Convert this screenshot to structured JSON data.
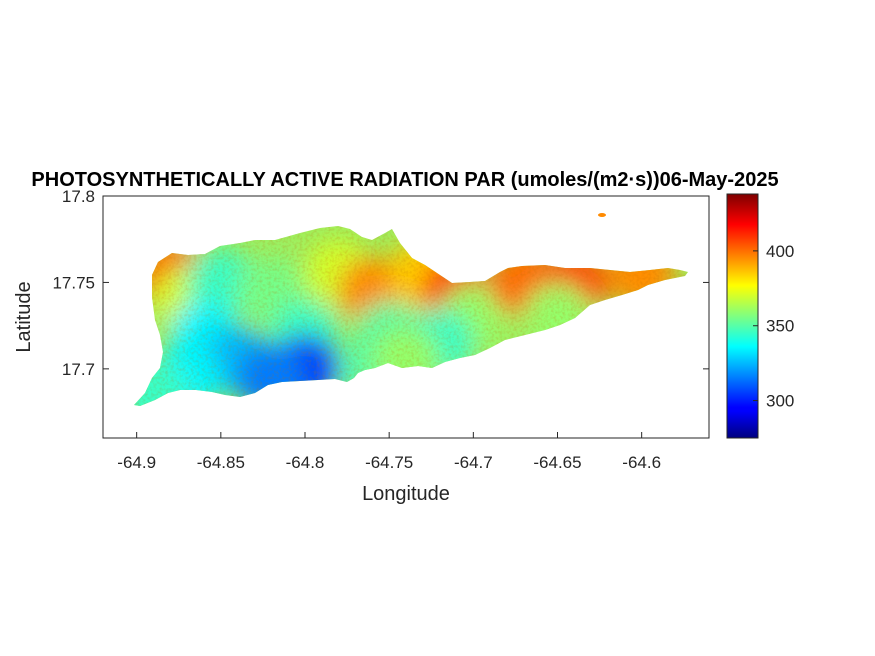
{
  "chart_data": {
    "type": "heatmap",
    "title": "PHOTOSYNTHETICALLY ACTIVE RADIATION PAR (umoles/(m2·s))06-May-2025",
    "xlabel": "Longitude",
    "ylabel": "Latitude",
    "xlim": [
      -64.92,
      -64.56
    ],
    "ylim": [
      17.66,
      17.8
    ],
    "x_ticks": [
      -64.9,
      -64.85,
      -64.8,
      -64.75,
      -64.7,
      -64.65,
      -64.6
    ],
    "x_tick_labels": [
      "-64.9",
      "-64.85",
      "-64.8",
      "-64.75",
      "-64.7",
      "-64.65",
      "-64.6"
    ],
    "y_ticks": [
      17.7,
      17.75,
      17.8
    ],
    "y_tick_labels": [
      "17.7",
      "17.75",
      "17.8"
    ],
    "colorbar": {
      "colormap": "jet",
      "clim": [
        275,
        438
      ],
      "ticks": [
        300,
        350,
        400
      ],
      "tick_labels": [
        "300",
        "350",
        "400"
      ]
    },
    "grid": false,
    "regions": [
      {
        "lon": -64.88,
        "lat": 17.755,
        "value": 400
      },
      {
        "lon": -64.87,
        "lat": 17.74,
        "value": 370
      },
      {
        "lon": -64.85,
        "lat": 17.75,
        "value": 345
      },
      {
        "lon": -64.82,
        "lat": 17.745,
        "value": 355
      },
      {
        "lon": -64.78,
        "lat": 17.755,
        "value": 370
      },
      {
        "lon": -64.76,
        "lat": 17.745,
        "value": 395
      },
      {
        "lon": -64.73,
        "lat": 17.755,
        "value": 385
      },
      {
        "lon": -64.71,
        "lat": 17.745,
        "value": 410
      },
      {
        "lon": -64.7,
        "lat": 17.73,
        "value": 360
      },
      {
        "lon": -64.67,
        "lat": 17.75,
        "value": 400
      },
      {
        "lon": -64.64,
        "lat": 17.75,
        "value": 405
      },
      {
        "lon": -64.6,
        "lat": 17.755,
        "value": 395
      },
      {
        "lon": -64.65,
        "lat": 17.73,
        "value": 360
      },
      {
        "lon": -64.86,
        "lat": 17.72,
        "value": 335
      },
      {
        "lon": -64.8,
        "lat": 17.72,
        "value": 345
      },
      {
        "lon": -64.75,
        "lat": 17.72,
        "value": 350
      },
      {
        "lon": -64.72,
        "lat": 17.715,
        "value": 345
      },
      {
        "lon": -64.84,
        "lat": 17.705,
        "value": 325
      },
      {
        "lon": -64.8,
        "lat": 17.7,
        "value": 305
      },
      {
        "lon": -64.82,
        "lat": 17.695,
        "value": 315
      },
      {
        "lon": -64.87,
        "lat": 17.695,
        "value": 335
      },
      {
        "lon": -64.89,
        "lat": 17.685,
        "value": 345
      },
      {
        "lon": -64.76,
        "lat": 17.7,
        "value": 350
      },
      {
        "lon": -64.74,
        "lat": 17.705,
        "value": 360
      }
    ]
  }
}
